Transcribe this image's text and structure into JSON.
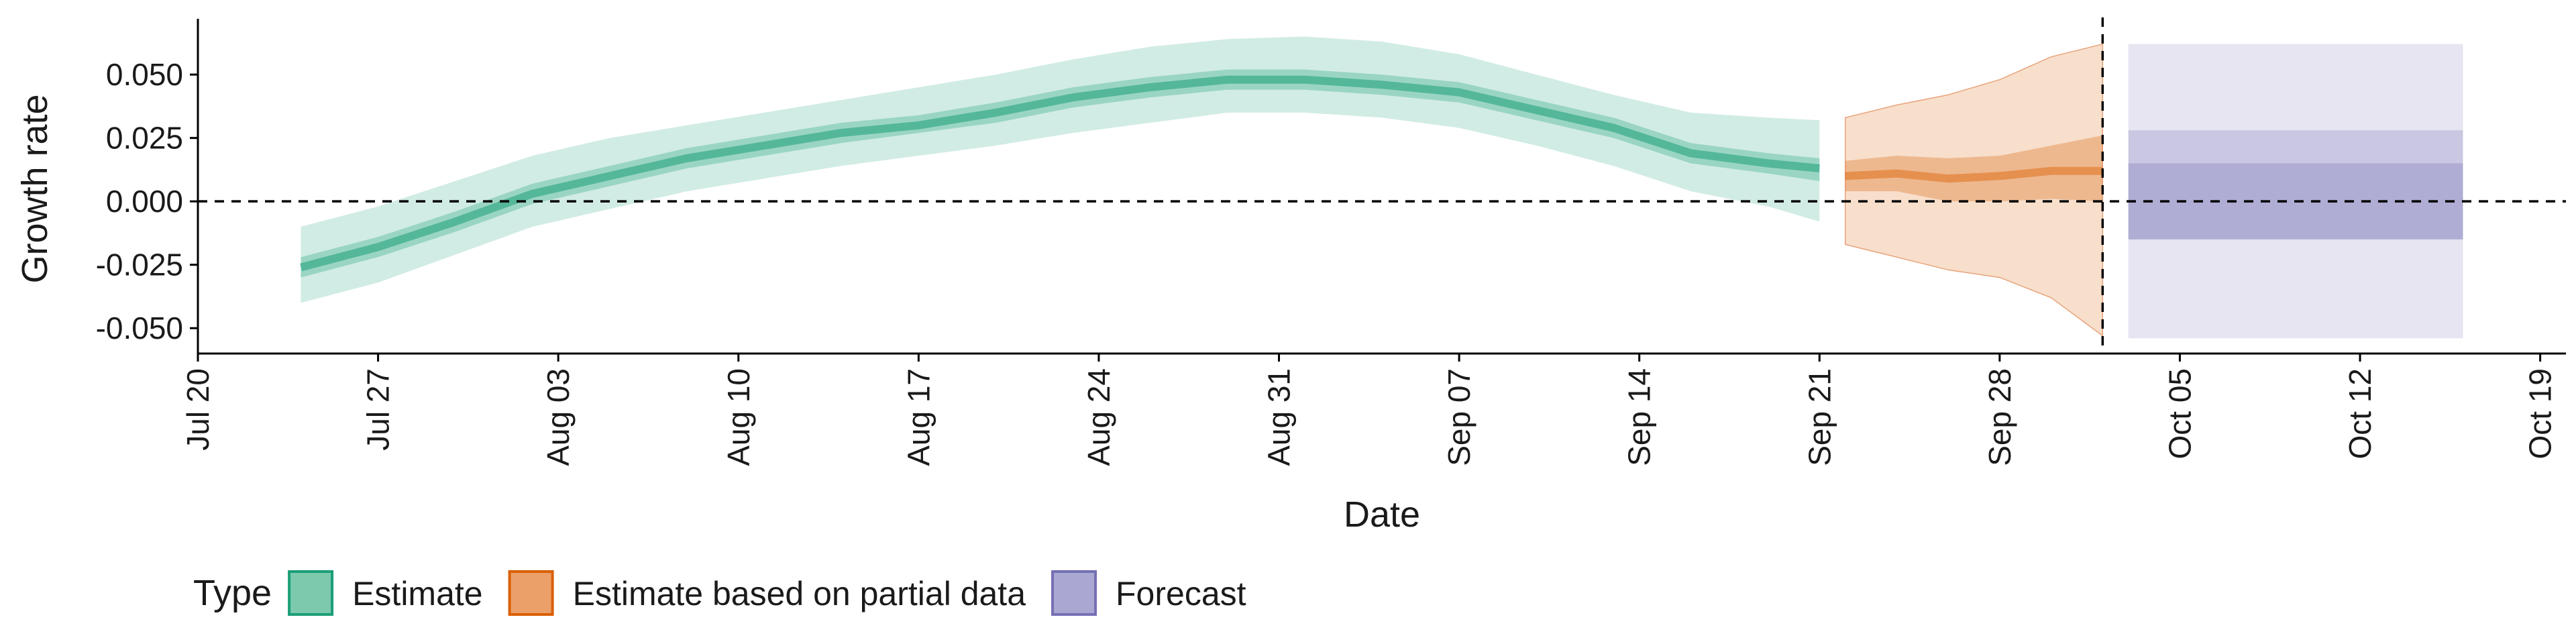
{
  "chart_data": {
    "type": "area",
    "title": "",
    "xlabel": "Date",
    "ylabel": "Growth rate",
    "x_range": [
      "2020-07-20",
      "2020-10-20"
    ],
    "ylim": [
      -0.06,
      0.072
    ],
    "x_ticks": [
      {
        "date": "2020-07-20",
        "label": "Jul 20"
      },
      {
        "date": "2020-07-27",
        "label": "Jul 27"
      },
      {
        "date": "2020-08-03",
        "label": "Aug 03"
      },
      {
        "date": "2020-08-10",
        "label": "Aug 10"
      },
      {
        "date": "2020-08-17",
        "label": "Aug 17"
      },
      {
        "date": "2020-08-24",
        "label": "Aug 24"
      },
      {
        "date": "2020-08-31",
        "label": "Aug 31"
      },
      {
        "date": "2020-09-07",
        "label": "Sep 07"
      },
      {
        "date": "2020-09-14",
        "label": "Sep 14"
      },
      {
        "date": "2020-09-21",
        "label": "Sep 21"
      },
      {
        "date": "2020-09-28",
        "label": "Sep 28"
      },
      {
        "date": "2020-10-05",
        "label": "Oct 05"
      },
      {
        "date": "2020-10-12",
        "label": "Oct 12"
      },
      {
        "date": "2020-10-19",
        "label": "Oct 19"
      }
    ],
    "y_ticks": [
      {
        "value": 0.05,
        "label": "0.050"
      },
      {
        "value": 0.025,
        "label": "0.025"
      },
      {
        "value": 0.0,
        "label": "0.000"
      },
      {
        "value": -0.025,
        "label": "-0.025"
      },
      {
        "value": -0.05,
        "label": "-0.050"
      }
    ],
    "reference_lines": [
      {
        "axis": "y",
        "value": 0.0,
        "style": "dashed"
      },
      {
        "axis": "x",
        "date": "2020-10-02",
        "style": "dashed"
      }
    ],
    "grid": false,
    "legend": {
      "position": "bottom",
      "title": "Type",
      "items": [
        {
          "label": "Estimate",
          "fill": "#7cc9ae",
          "stroke": "#1b9e77"
        },
        {
          "label": "Estimate based on partial data",
          "fill": "#eba06a",
          "stroke": "#d95f02"
        },
        {
          "label": "Forecast",
          "fill": "#aaa8d2",
          "stroke": "#7570b3"
        }
      ]
    },
    "series": [
      {
        "name": "Estimate",
        "color": "#1b9e77",
        "x": [
          "2020-07-24",
          "2020-07-27",
          "2020-07-30",
          "2020-08-02",
          "2020-08-05",
          "2020-08-08",
          "2020-08-11",
          "2020-08-14",
          "2020-08-17",
          "2020-08-20",
          "2020-08-23",
          "2020-08-26",
          "2020-08-29",
          "2020-09-01",
          "2020-09-04",
          "2020-09-07",
          "2020-09-10",
          "2020-09-13",
          "2020-09-16",
          "2020-09-19",
          "2020-09-21"
        ],
        "median": [
          -0.026,
          -0.018,
          -0.008,
          0.003,
          0.01,
          0.017,
          0.022,
          0.027,
          0.03,
          0.035,
          0.041,
          0.045,
          0.048,
          0.048,
          0.046,
          0.043,
          0.036,
          0.029,
          0.019,
          0.015,
          0.013
        ],
        "lower_50": [
          -0.03,
          -0.022,
          -0.012,
          -0.001,
          0.006,
          0.013,
          0.018,
          0.023,
          0.027,
          0.031,
          0.037,
          0.041,
          0.044,
          0.044,
          0.042,
          0.039,
          0.032,
          0.025,
          0.015,
          0.011,
          0.008
        ],
        "upper_50": [
          -0.022,
          -0.014,
          -0.004,
          0.007,
          0.014,
          0.021,
          0.026,
          0.031,
          0.034,
          0.039,
          0.045,
          0.049,
          0.052,
          0.052,
          0.05,
          0.047,
          0.04,
          0.033,
          0.023,
          0.019,
          0.017
        ],
        "lower_90": [
          -0.04,
          -0.032,
          -0.021,
          -0.01,
          -0.003,
          0.004,
          0.009,
          0.014,
          0.018,
          0.022,
          0.027,
          0.031,
          0.035,
          0.035,
          0.033,
          0.029,
          0.022,
          0.014,
          0.004,
          -0.002,
          -0.008
        ],
        "upper_90": [
          -0.01,
          -0.002,
          0.008,
          0.018,
          0.025,
          0.03,
          0.035,
          0.04,
          0.045,
          0.05,
          0.056,
          0.061,
          0.064,
          0.065,
          0.063,
          0.058,
          0.05,
          0.042,
          0.035,
          0.033,
          0.032
        ]
      },
      {
        "name": "Estimate based on partial data",
        "color": "#d95f02",
        "x": [
          "2020-09-22",
          "2020-09-24",
          "2020-09-26",
          "2020-09-28",
          "2020-09-30",
          "2020-10-02"
        ],
        "median": [
          0.01,
          0.011,
          0.009,
          0.01,
          0.012,
          0.012
        ],
        "lower_50": [
          0.004,
          0.004,
          0.0,
          0.0,
          0.001,
          0.0
        ],
        "upper_50": [
          0.016,
          0.018,
          0.017,
          0.018,
          0.022,
          0.026
        ],
        "lower_90": [
          -0.017,
          -0.022,
          -0.027,
          -0.03,
          -0.038,
          -0.053
        ],
        "upper_90": [
          0.033,
          0.038,
          0.042,
          0.048,
          0.057,
          0.062
        ]
      },
      {
        "name": "Forecast",
        "color": "#7570b3",
        "x": [
          "2020-10-03",
          "2020-10-16"
        ],
        "lower_50": [
          -0.015,
          -0.015
        ],
        "upper_50": [
          0.015,
          0.015
        ],
        "lower_75": [
          -0.015,
          -0.015
        ],
        "upper_75": [
          0.028,
          0.028
        ],
        "lower_90": [
          -0.054,
          -0.054
        ],
        "upper_90": [
          0.062,
          0.062
        ]
      }
    ]
  }
}
